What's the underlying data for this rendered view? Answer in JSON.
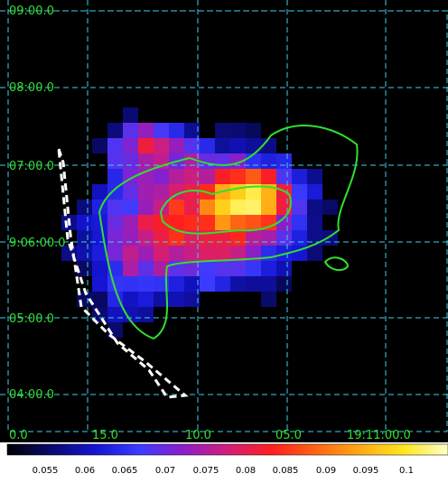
{
  "image": {
    "background": "#000000",
    "grid_color": "#3fd0e6",
    "contour_color": "#30e030",
    "region_color": "#ffffff",
    "label_color": "#30e030"
  },
  "axes": {
    "dec_labels": [
      "09:00.0",
      "08:00.0",
      "07:00.0",
      "9:06:00.0",
      "05:00.0",
      "04:00.0"
    ],
    "ra_labels": [
      "0.0",
      "15.0",
      "10.0",
      "05.0",
      "19:11:00.0"
    ]
  },
  "colorbar": {
    "ticks": [
      "0.055",
      "0.06",
      "0.065",
      "0.07",
      "0.075",
      "0.08",
      "0.085",
      "0.09",
      "0.095",
      "0.1"
    ],
    "colors": [
      "#000000",
      "#0a0a6e",
      "#1414d2",
      "#3c3cff",
      "#8c1ec8",
      "#d21e78",
      "#ff1e1e",
      "#ff6414",
      "#ffaa14",
      "#ffe61e",
      "#ffffc8"
    ]
  }
}
